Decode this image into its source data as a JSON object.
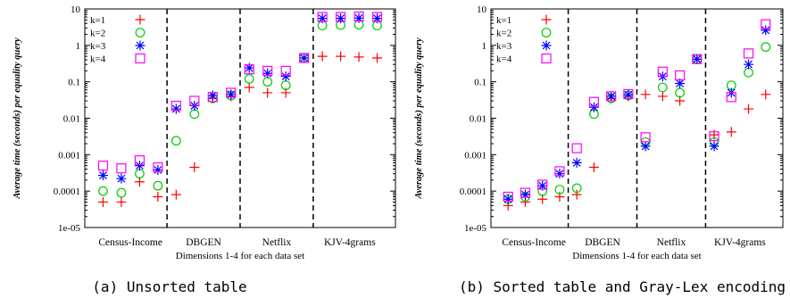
{
  "chart_data": [
    {
      "type": "scatter",
      "caption": "(a) Unsorted table",
      "ylabel": "Average time (seconds) per equality query",
      "xlabel": "Dimensions 1-4 for each data set",
      "yscale": "log",
      "ylim": [
        1e-05,
        10
      ],
      "yticks": [
        "1e-05",
        "0.0001",
        "0.001",
        "0.01",
        "0.1",
        "1",
        "10"
      ],
      "categories": [
        "Census-Income",
        "DBGEN",
        "Netflix",
        "KJV-4grams"
      ],
      "legend_position": "top-left",
      "series": [
        {
          "name": "k=1",
          "color": "#ff0000",
          "marker": "plus",
          "values": [
            5e-05,
            5e-05,
            0.00018,
            7e-05,
            8e-05,
            0.00045,
            0.035,
            0.04,
            0.07,
            0.05,
            0.05,
            0.45,
            0.5,
            0.5,
            0.48,
            0.45
          ]
        },
        {
          "name": "k=2",
          "color": "#00cc00",
          "marker": "circle",
          "values": [
            0.0001,
            9e-05,
            0.0003,
            0.00014,
            0.0024,
            0.013,
            0.035,
            0.042,
            0.12,
            0.1,
            0.08,
            0.45,
            3.5,
            3.6,
            3.7,
            3.5
          ]
        },
        {
          "name": "k=3",
          "color": "#0000ff",
          "marker": "star",
          "values": [
            0.00027,
            0.00022,
            0.0005,
            0.00038,
            0.018,
            0.022,
            0.042,
            0.045,
            0.24,
            0.17,
            0.14,
            0.45,
            5.5,
            5.5,
            5.6,
            5.5
          ]
        },
        {
          "name": "k=4",
          "color": "#ff00ff",
          "marker": "square",
          "values": [
            0.0005,
            0.00042,
            0.0007,
            0.00045,
            0.022,
            0.03,
            0.038,
            0.05,
            0.22,
            0.2,
            0.2,
            0.45,
            6.0,
            6.0,
            6.2,
            6.0
          ]
        }
      ]
    },
    {
      "type": "scatter",
      "caption": "(b) Sorted table and Gray-Lex encoding",
      "ylabel": "Average time (seconds) per equality query",
      "xlabel": "Dimensions 1-4 for each data set",
      "yscale": "log",
      "ylim": [
        1e-05,
        10
      ],
      "yticks": [
        "1e-05",
        "0.0001",
        "0.001",
        "0.01",
        "0.1",
        "1",
        "10"
      ],
      "categories": [
        "Census-Income",
        "DBGEN",
        "Netflix",
        "KJV-4grams"
      ],
      "legend_position": "top-left",
      "series": [
        {
          "name": "k=1",
          "color": "#ff0000",
          "marker": "plus",
          "values": [
            4e-05,
            5e-05,
            6e-05,
            7e-05,
            8e-05,
            0.00045,
            0.035,
            0.04,
            0.045,
            0.04,
            0.03,
            0.42,
            0.0035,
            0.0042,
            0.018,
            0.045
          ]
        },
        {
          "name": "k=2",
          "color": "#00cc00",
          "marker": "circle",
          "values": [
            6e-05,
            7e-05,
            0.0001,
            0.00011,
            0.00012,
            0.013,
            0.035,
            0.042,
            0.0022,
            0.07,
            0.05,
            0.42,
            0.0022,
            0.08,
            0.18,
            0.9
          ]
        },
        {
          "name": "k=3",
          "color": "#0000ff",
          "marker": "star",
          "values": [
            6e-05,
            8e-05,
            0.00014,
            0.0003,
            0.0006,
            0.02,
            0.04,
            0.044,
            0.0017,
            0.14,
            0.09,
            0.42,
            0.0017,
            0.05,
            0.3,
            2.6
          ]
        },
        {
          "name": "k=4",
          "color": "#ff00ff",
          "marker": "square",
          "values": [
            7e-05,
            9e-05,
            0.00015,
            0.00035,
            0.0015,
            0.028,
            0.04,
            0.046,
            0.003,
            0.19,
            0.15,
            0.42,
            0.0032,
            0.038,
            0.6,
            3.8
          ]
        }
      ]
    }
  ]
}
